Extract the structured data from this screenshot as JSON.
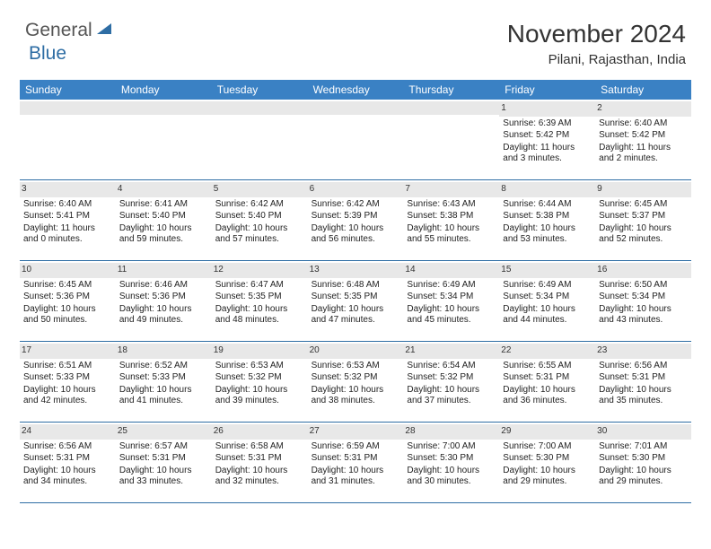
{
  "brand": {
    "name1": "General",
    "name2": "Blue"
  },
  "title": "November 2024",
  "subtitle": "Pilani, Rajasthan, India",
  "colors": {
    "header_bg": "#3a81c4",
    "border": "#2e6da4",
    "daynum_bg": "#e8e8e8",
    "text": "#222222",
    "page_bg": "#ffffff"
  },
  "day_labels": [
    "Sunday",
    "Monday",
    "Tuesday",
    "Wednesday",
    "Thursday",
    "Friday",
    "Saturday"
  ],
  "weeks": [
    [
      {
        "day": ""
      },
      {
        "day": ""
      },
      {
        "day": ""
      },
      {
        "day": ""
      },
      {
        "day": ""
      },
      {
        "day": "1",
        "sunrise": "Sunrise: 6:39 AM",
        "sunset": "Sunset: 5:42 PM",
        "daylight": "Daylight: 11 hours and 3 minutes."
      },
      {
        "day": "2",
        "sunrise": "Sunrise: 6:40 AM",
        "sunset": "Sunset: 5:42 PM",
        "daylight": "Daylight: 11 hours and 2 minutes."
      }
    ],
    [
      {
        "day": "3",
        "sunrise": "Sunrise: 6:40 AM",
        "sunset": "Sunset: 5:41 PM",
        "daylight": "Daylight: 11 hours and 0 minutes."
      },
      {
        "day": "4",
        "sunrise": "Sunrise: 6:41 AM",
        "sunset": "Sunset: 5:40 PM",
        "daylight": "Daylight: 10 hours and 59 minutes."
      },
      {
        "day": "5",
        "sunrise": "Sunrise: 6:42 AM",
        "sunset": "Sunset: 5:40 PM",
        "daylight": "Daylight: 10 hours and 57 minutes."
      },
      {
        "day": "6",
        "sunrise": "Sunrise: 6:42 AM",
        "sunset": "Sunset: 5:39 PM",
        "daylight": "Daylight: 10 hours and 56 minutes."
      },
      {
        "day": "7",
        "sunrise": "Sunrise: 6:43 AM",
        "sunset": "Sunset: 5:38 PM",
        "daylight": "Daylight: 10 hours and 55 minutes."
      },
      {
        "day": "8",
        "sunrise": "Sunrise: 6:44 AM",
        "sunset": "Sunset: 5:38 PM",
        "daylight": "Daylight: 10 hours and 53 minutes."
      },
      {
        "day": "9",
        "sunrise": "Sunrise: 6:45 AM",
        "sunset": "Sunset: 5:37 PM",
        "daylight": "Daylight: 10 hours and 52 minutes."
      }
    ],
    [
      {
        "day": "10",
        "sunrise": "Sunrise: 6:45 AM",
        "sunset": "Sunset: 5:36 PM",
        "daylight": "Daylight: 10 hours and 50 minutes."
      },
      {
        "day": "11",
        "sunrise": "Sunrise: 6:46 AM",
        "sunset": "Sunset: 5:36 PM",
        "daylight": "Daylight: 10 hours and 49 minutes."
      },
      {
        "day": "12",
        "sunrise": "Sunrise: 6:47 AM",
        "sunset": "Sunset: 5:35 PM",
        "daylight": "Daylight: 10 hours and 48 minutes."
      },
      {
        "day": "13",
        "sunrise": "Sunrise: 6:48 AM",
        "sunset": "Sunset: 5:35 PM",
        "daylight": "Daylight: 10 hours and 47 minutes."
      },
      {
        "day": "14",
        "sunrise": "Sunrise: 6:49 AM",
        "sunset": "Sunset: 5:34 PM",
        "daylight": "Daylight: 10 hours and 45 minutes."
      },
      {
        "day": "15",
        "sunrise": "Sunrise: 6:49 AM",
        "sunset": "Sunset: 5:34 PM",
        "daylight": "Daylight: 10 hours and 44 minutes."
      },
      {
        "day": "16",
        "sunrise": "Sunrise: 6:50 AM",
        "sunset": "Sunset: 5:34 PM",
        "daylight": "Daylight: 10 hours and 43 minutes."
      }
    ],
    [
      {
        "day": "17",
        "sunrise": "Sunrise: 6:51 AM",
        "sunset": "Sunset: 5:33 PM",
        "daylight": "Daylight: 10 hours and 42 minutes."
      },
      {
        "day": "18",
        "sunrise": "Sunrise: 6:52 AM",
        "sunset": "Sunset: 5:33 PM",
        "daylight": "Daylight: 10 hours and 41 minutes."
      },
      {
        "day": "19",
        "sunrise": "Sunrise: 6:53 AM",
        "sunset": "Sunset: 5:32 PM",
        "daylight": "Daylight: 10 hours and 39 minutes."
      },
      {
        "day": "20",
        "sunrise": "Sunrise: 6:53 AM",
        "sunset": "Sunset: 5:32 PM",
        "daylight": "Daylight: 10 hours and 38 minutes."
      },
      {
        "day": "21",
        "sunrise": "Sunrise: 6:54 AM",
        "sunset": "Sunset: 5:32 PM",
        "daylight": "Daylight: 10 hours and 37 minutes."
      },
      {
        "day": "22",
        "sunrise": "Sunrise: 6:55 AM",
        "sunset": "Sunset: 5:31 PM",
        "daylight": "Daylight: 10 hours and 36 minutes."
      },
      {
        "day": "23",
        "sunrise": "Sunrise: 6:56 AM",
        "sunset": "Sunset: 5:31 PM",
        "daylight": "Daylight: 10 hours and 35 minutes."
      }
    ],
    [
      {
        "day": "24",
        "sunrise": "Sunrise: 6:56 AM",
        "sunset": "Sunset: 5:31 PM",
        "daylight": "Daylight: 10 hours and 34 minutes."
      },
      {
        "day": "25",
        "sunrise": "Sunrise: 6:57 AM",
        "sunset": "Sunset: 5:31 PM",
        "daylight": "Daylight: 10 hours and 33 minutes."
      },
      {
        "day": "26",
        "sunrise": "Sunrise: 6:58 AM",
        "sunset": "Sunset: 5:31 PM",
        "daylight": "Daylight: 10 hours and 32 minutes."
      },
      {
        "day": "27",
        "sunrise": "Sunrise: 6:59 AM",
        "sunset": "Sunset: 5:31 PM",
        "daylight": "Daylight: 10 hours and 31 minutes."
      },
      {
        "day": "28",
        "sunrise": "Sunrise: 7:00 AM",
        "sunset": "Sunset: 5:30 PM",
        "daylight": "Daylight: 10 hours and 30 minutes."
      },
      {
        "day": "29",
        "sunrise": "Sunrise: 7:00 AM",
        "sunset": "Sunset: 5:30 PM",
        "daylight": "Daylight: 10 hours and 29 minutes."
      },
      {
        "day": "30",
        "sunrise": "Sunrise: 7:01 AM",
        "sunset": "Sunset: 5:30 PM",
        "daylight": "Daylight: 10 hours and 29 minutes."
      }
    ]
  ]
}
